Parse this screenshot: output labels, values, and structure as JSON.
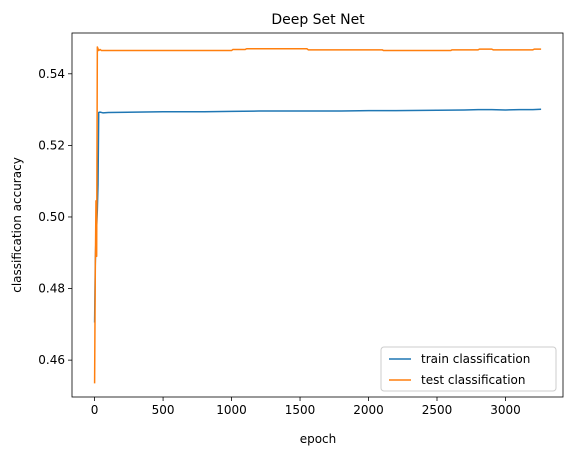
{
  "chart_data": {
    "type": "line",
    "title": "Deep Set Net",
    "xlabel": "epoch",
    "ylabel": "classification accuracy",
    "xlim": [
      -165,
      3420
    ],
    "ylim": [
      0.4497,
      0.5514
    ],
    "xticks": [
      0,
      500,
      1000,
      1500,
      2000,
      2500,
      3000
    ],
    "yticks": [
      0.46,
      0.48,
      0.5,
      0.52,
      0.54
    ],
    "ytick_labels": [
      "0.46",
      "0.48",
      "0.50",
      "0.52",
      "0.54"
    ],
    "grid": false,
    "legend_position": "lower-right",
    "series": [
      {
        "name": "train classification",
        "color": "#1f77b4",
        "x": [
          0,
          5,
          10,
          15,
          20,
          25,
          30,
          40,
          60,
          100,
          300,
          500,
          800,
          1000,
          1200,
          1500,
          1800,
          2000,
          2200,
          2500,
          2700,
          2800,
          2900,
          3000,
          3100,
          3200,
          3260
        ],
        "y": [
          0.4705,
          0.487,
          0.4945,
          0.497,
          0.502,
          0.509,
          0.5292,
          0.5293,
          0.5291,
          0.5292,
          0.5293,
          0.5294,
          0.5294,
          0.5295,
          0.5296,
          0.5296,
          0.5296,
          0.5297,
          0.5297,
          0.5298,
          0.5299,
          0.53,
          0.53,
          0.5299,
          0.53,
          0.53,
          0.5301
        ]
      },
      {
        "name": "test classification",
        "color": "#ff7f0e",
        "x": [
          0,
          5,
          10,
          15,
          20,
          25,
          30,
          40,
          50,
          100,
          500,
          1000,
          1010,
          1100,
          1110,
          1550,
          1560,
          2100,
          2110,
          2600,
          2610,
          2800,
          2810,
          2900,
          2910,
          3200,
          3210,
          3260
        ],
        "y": [
          0.4535,
          0.4845,
          0.5045,
          0.489,
          0.5475,
          0.547,
          0.5465,
          0.5468,
          0.5465,
          0.5465,
          0.5465,
          0.5465,
          0.5468,
          0.5468,
          0.547,
          0.547,
          0.5467,
          0.5467,
          0.5465,
          0.5465,
          0.5467,
          0.5467,
          0.5469,
          0.5469,
          0.5467,
          0.5467,
          0.5469,
          0.5469
        ]
      }
    ]
  }
}
